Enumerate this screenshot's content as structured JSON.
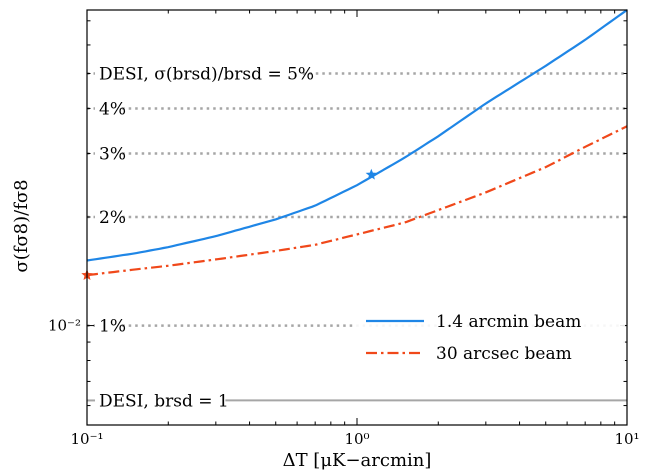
{
  "chart_data": {
    "type": "line",
    "xscale": "log",
    "yscale": "log",
    "xlim": [
      0.1,
      10
    ],
    "ylim": [
      0.0053,
      0.075
    ],
    "xlabel": "ΔT [μK−arcmin]",
    "ylabel": "σ(fσ8)/fσ8",
    "x_ticks": [
      {
        "value": 0.1,
        "label": "10⁻¹"
      },
      {
        "value": 1,
        "label": "10⁰"
      },
      {
        "value": 10,
        "label": "10¹"
      }
    ],
    "y_ticks": [
      {
        "value": 0.01,
        "label": "10⁻²"
      }
    ],
    "reference_lines": [
      {
        "y": 0.05,
        "label": "DESI, σ(brsd)/brsd = 5%",
        "style": "dotted",
        "color": "#a6a6a6"
      },
      {
        "y": 0.04,
        "label": "4%",
        "style": "dotted",
        "color": "#a6a6a6"
      },
      {
        "y": 0.03,
        "label": "3%",
        "style": "dotted",
        "color": "#a6a6a6"
      },
      {
        "y": 0.02,
        "label": "2%",
        "style": "dotted",
        "color": "#a6a6a6"
      },
      {
        "y": 0.01,
        "label": "1%",
        "style": "dotted",
        "color": "#a6a6a6"
      },
      {
        "y": 0.0062,
        "label": "DESI, brsd = 1",
        "style": "solid",
        "color": "#a6a6a6"
      }
    ],
    "series": [
      {
        "name": "1.4 arcmin beam",
        "color": "#1f86e6",
        "style": "solid",
        "marker": {
          "x": 1.13,
          "y": 0.0262
        },
        "x": [
          0.1,
          0.15,
          0.2,
          0.3,
          0.5,
          0.7,
          1.0,
          1.5,
          2.0,
          3.0,
          5.0,
          7.0,
          10.0
        ],
        "y": [
          0.01515,
          0.01585,
          0.0165,
          0.0177,
          0.0197,
          0.0215,
          0.0245,
          0.0292,
          0.0335,
          0.0413,
          0.0525,
          0.062,
          0.075
        ]
      },
      {
        "name": "30 arcsec beam",
        "color": "#f0481a",
        "style": "dashdot",
        "marker": {
          "x": 0.1,
          "y": 0.0138
        },
        "x": [
          0.1,
          0.15,
          0.2,
          0.3,
          0.5,
          0.7,
          1.0,
          1.5,
          2.0,
          3.0,
          5.0,
          7.0,
          10.0
        ],
        "y": [
          0.0138,
          0.0143,
          0.01465,
          0.01525,
          0.0161,
          0.01675,
          0.0179,
          0.0193,
          0.0209,
          0.0234,
          0.0275,
          0.0313,
          0.0357
        ]
      }
    ],
    "legend": {
      "position": "lower-right"
    }
  }
}
